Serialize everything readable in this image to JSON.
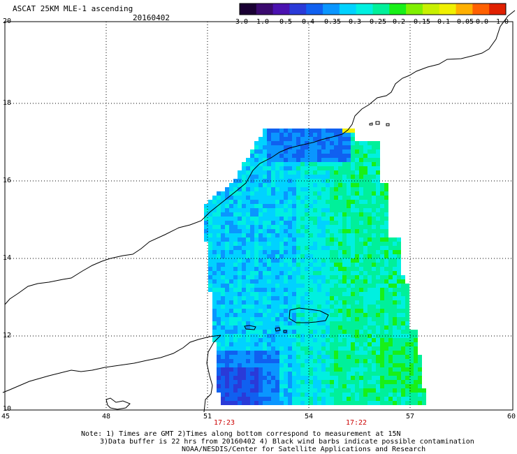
{
  "header": {
    "title": "ASCAT 25KM MLE-1 ascending",
    "date": "20160402"
  },
  "color_scale": {
    "tick_labels": [
      "-3.0",
      "-1.0",
      "-0.5",
      "-0.4",
      "-0.35",
      "-0.3",
      "-0.25",
      "-0.2",
      "-0.15",
      "-0.1",
      "-0.05",
      "0.0",
      "1.0"
    ],
    "colors": [
      "#1a0033",
      "#3a0a6e",
      "#4b12b0",
      "#2a3ad8",
      "#1060f0",
      "#0a96ff",
      "#00d2ff",
      "#00f0e0",
      "#00f09a",
      "#18f018",
      "#80f000",
      "#c8f000",
      "#f0f000",
      "#ffb000",
      "#ff6000",
      "#e02000"
    ]
  },
  "map": {
    "lat_labels": [
      "20",
      "18",
      "16",
      "14",
      "12",
      "10"
    ],
    "lon_labels": [
      "45",
      "48",
      "51",
      "54",
      "57",
      "60"
    ],
    "time_labels": [
      "17:23",
      "17:22"
    ]
  },
  "notes": {
    "line1": "Note: 1) Times are GMT 2)Times along bottom correspond to measurement at 15N",
    "line2": "3)Data buffer is 22 hrs from 20160402 4) Black wind barbs indicate possible contamination",
    "line3": "NOAA/NESDIS/Center for Satellite Applications and Research"
  }
}
